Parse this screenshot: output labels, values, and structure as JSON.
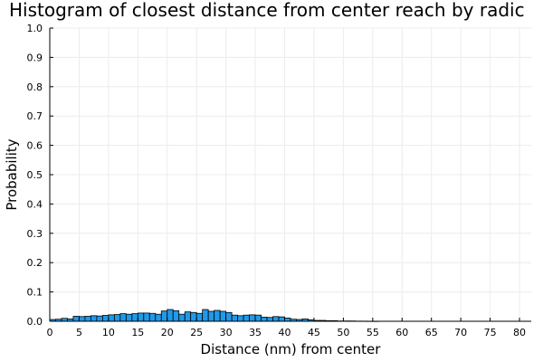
{
  "chart_data": {
    "type": "bar",
    "title": "Histogram of closest distance from center reach by radic",
    "xlabel": "Distance (nm) from center",
    "ylabel": "Probability",
    "xlim": [
      0,
      82
    ],
    "ylim": [
      0,
      1.0
    ],
    "x_ticks": [
      0,
      5,
      10,
      15,
      20,
      25,
      30,
      35,
      40,
      45,
      50,
      55,
      60,
      65,
      70,
      75,
      80
    ],
    "y_ticks": [
      "0.0",
      "0.1",
      "0.2",
      "0.3",
      "0.4",
      "0.5",
      "0.6",
      "0.7",
      "0.8",
      "0.9",
      "1.0"
    ],
    "grid": true,
    "bar_color": "#1f9ae9",
    "bin_width": 1,
    "bins_start": 0,
    "values": [
      0.006,
      0.007,
      0.01,
      0.008,
      0.017,
      0.016,
      0.017,
      0.019,
      0.018,
      0.02,
      0.022,
      0.023,
      0.026,
      0.024,
      0.026,
      0.028,
      0.028,
      0.027,
      0.024,
      0.035,
      0.04,
      0.036,
      0.024,
      0.032,
      0.03,
      0.027,
      0.04,
      0.034,
      0.037,
      0.034,
      0.03,
      0.021,
      0.019,
      0.021,
      0.022,
      0.021,
      0.014,
      0.013,
      0.016,
      0.015,
      0.011,
      0.007,
      0.006,
      0.008,
      0.005,
      0.003,
      0.003,
      0.002,
      0.002,
      0.001,
      0.001,
      0.001,
      0.0005,
      0.0005,
      0.0003,
      0.0002
    ]
  }
}
